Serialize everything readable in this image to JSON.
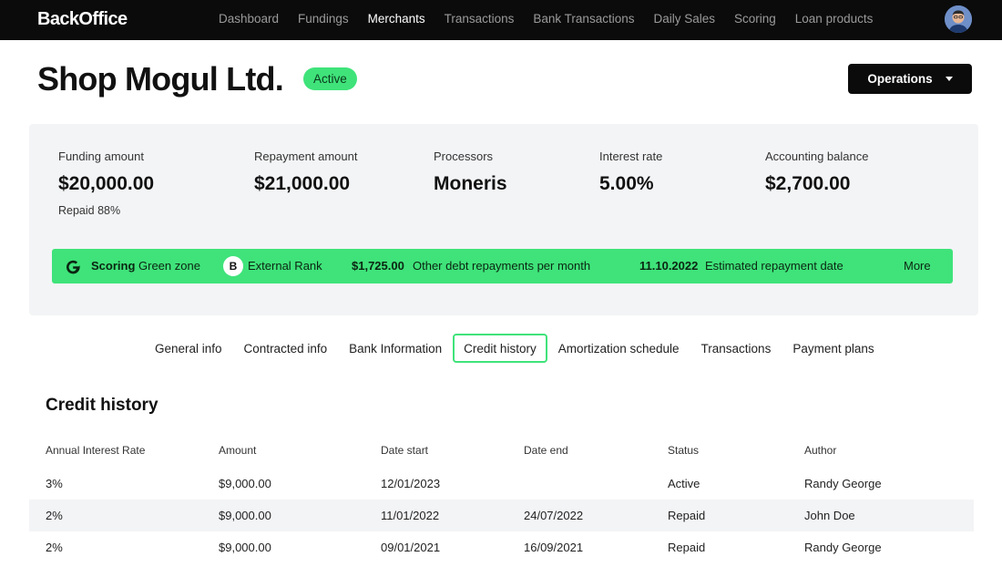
{
  "app": {
    "brand": "BackOffice"
  },
  "nav": {
    "items": [
      {
        "label": "Dashboard",
        "active": false
      },
      {
        "label": "Fundings",
        "active": false
      },
      {
        "label": "Merchants",
        "active": true
      },
      {
        "label": "Transactions",
        "active": false
      },
      {
        "label": "Bank Transactions",
        "active": false
      },
      {
        "label": "Daily Sales",
        "active": false
      },
      {
        "label": "Scoring",
        "active": false
      },
      {
        "label": "Loan products",
        "active": false
      }
    ]
  },
  "header": {
    "title": "Shop Mogul Ltd.",
    "status": "Active",
    "operations_label": "Operations"
  },
  "summary": {
    "funding_label": "Funding amount",
    "funding_value": "$20,000.00",
    "funding_sub": "Repaid 88%",
    "repayment_label": "Repayment amount",
    "repayment_value": "$21,000.00",
    "processors_label": "Processors",
    "processors_value": "Moneris",
    "interest_label": "Interest rate",
    "interest_value": "5.00%",
    "balance_label": "Accounting balance",
    "balance_value": "$2,700.00"
  },
  "scorebar": {
    "scoring_label": "Scoring",
    "scoring_value": "Green zone",
    "rank_badge": "B",
    "rank_label": "External Rank",
    "debt_value": "$1,725.00",
    "debt_label": "Other debt repayments per month",
    "date_value": "11.10.2022",
    "date_label": "Estimated repayment date",
    "more_label": "More"
  },
  "tabs": [
    {
      "label": "General info",
      "active": false
    },
    {
      "label": "Contracted info",
      "active": false
    },
    {
      "label": "Bank Information",
      "active": false
    },
    {
      "label": "Credit history",
      "active": true
    },
    {
      "label": "Amortization schedule",
      "active": false
    },
    {
      "label": "Transactions",
      "active": false
    },
    {
      "label": "Payment plans",
      "active": false
    }
  ],
  "credit_history": {
    "title": "Credit history",
    "columns": [
      "Annual Interest Rate",
      "Amount",
      "Date start",
      "Date end",
      "Status",
      "Author"
    ],
    "rows": [
      [
        "3%",
        "$9,000.00",
        "12/01/2023",
        "",
        "Active",
        "Randy George"
      ],
      [
        "2%",
        "$9,000.00",
        "11/01/2022",
        "24/07/2022",
        "Repaid",
        "John Doe"
      ],
      [
        "2%",
        "$9,000.00",
        "09/01/2021",
        "16/09/2021",
        "Repaid",
        "Randy George"
      ]
    ]
  },
  "colors": {
    "accent_green": "#3fe37a",
    "topbar": "#0b0b0b",
    "panel": "#f3f4f6"
  }
}
